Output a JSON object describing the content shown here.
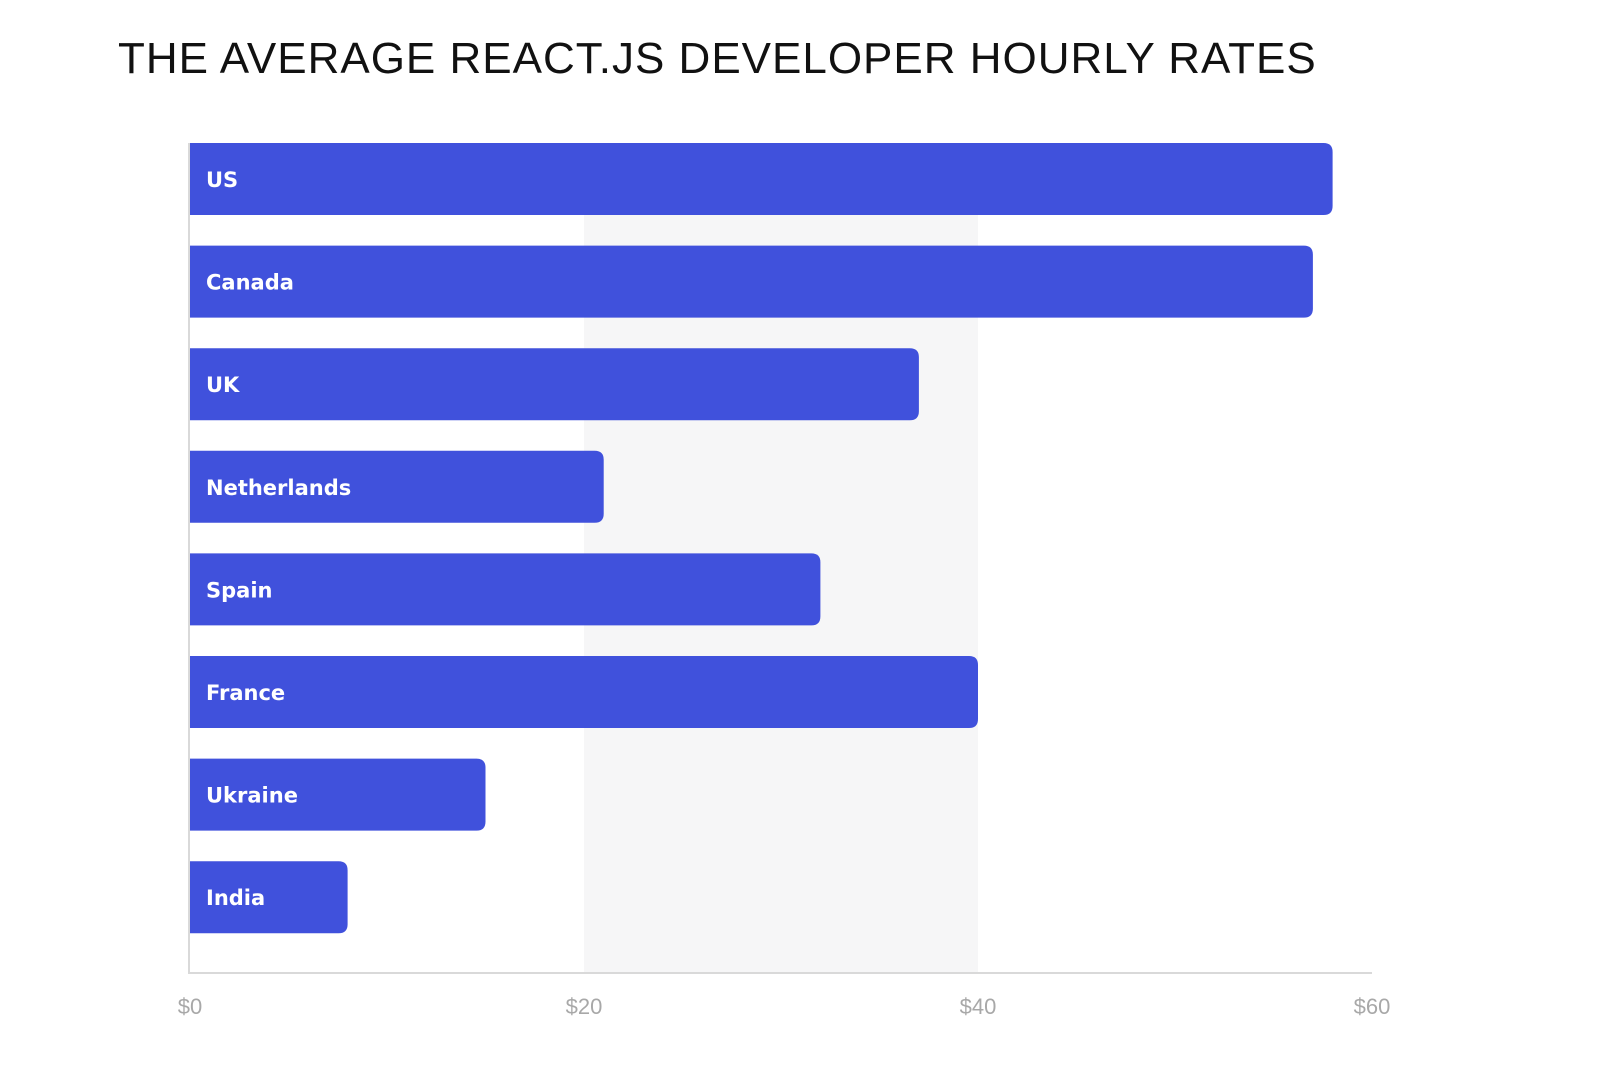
{
  "chart_data": {
    "type": "bar",
    "orientation": "horizontal",
    "title": "THE AVERAGE REACT.JS DEVELOPER HOURLY RATES",
    "categories": [
      "US",
      "Canada",
      "UK",
      "Netherlands",
      "Spain",
      "France",
      "Ukraine",
      "India"
    ],
    "values": [
      58,
      57,
      37,
      21,
      32,
      40,
      15,
      8
    ],
    "xlim": [
      0,
      60
    ],
    "x_ticks": [
      0,
      20,
      40,
      60
    ],
    "x_tick_labels": [
      "$0",
      "$20",
      "$40",
      "$60"
    ],
    "xlabel": "",
    "ylabel": "",
    "grid": "alternating vertical bands",
    "legend": "none",
    "colors": {
      "bar": "#4051DC",
      "band": "#F6F6F7",
      "axis": "#D9D9D9",
      "tick_text": "#A8A8A8",
      "label_text": "#FFFFFF"
    }
  }
}
